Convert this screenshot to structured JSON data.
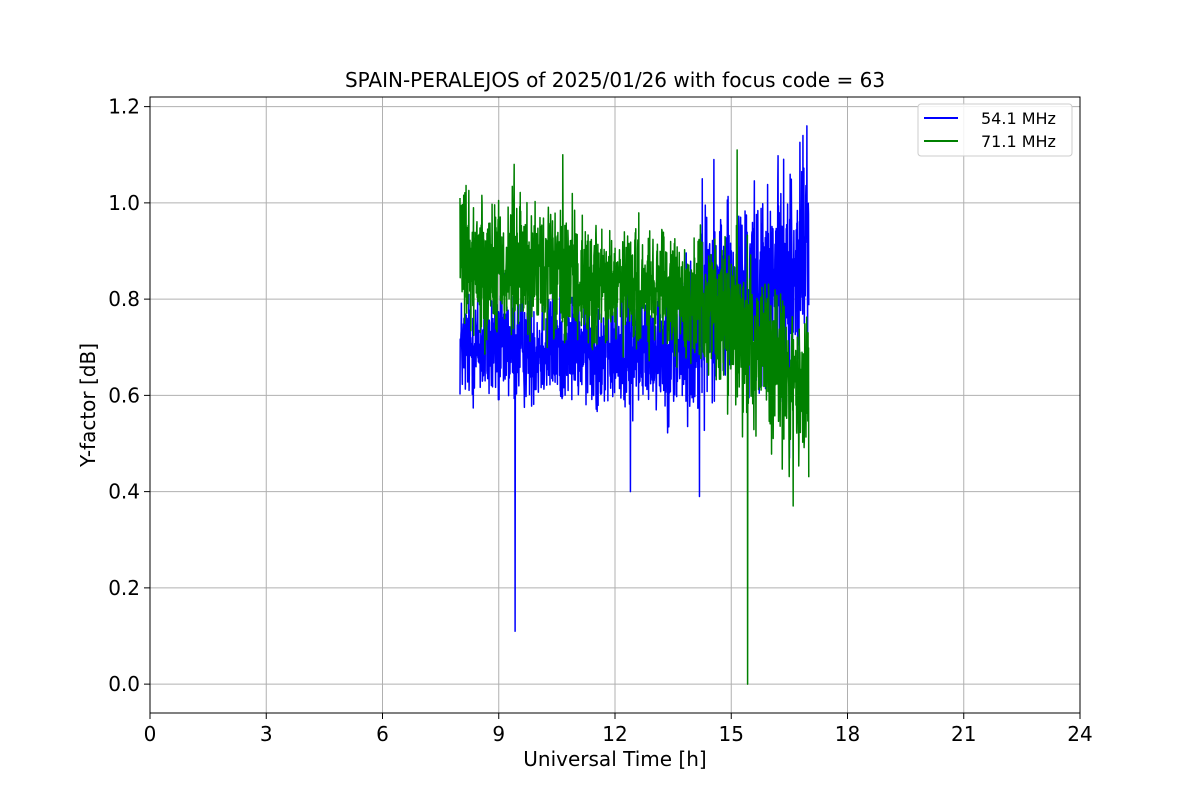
{
  "chart_data": {
    "type": "line",
    "title": "SPAIN-PERALEJOS of 2025/01/26 with focus code = 63",
    "xlabel": "Universal Time [h]",
    "ylabel": "Y-factor [dB]",
    "xlim": [
      0,
      24
    ],
    "ylim": [
      -0.06,
      1.22
    ],
    "xticks": [
      0,
      3,
      6,
      9,
      12,
      15,
      18,
      21,
      24
    ],
    "yticks": [
      0.0,
      0.2,
      0.4,
      0.6,
      0.8,
      1.0,
      1.2
    ],
    "xtick_labels": [
      "0",
      "3",
      "6",
      "9",
      "12",
      "15",
      "18",
      "21",
      "24"
    ],
    "ytick_labels": [
      "0.0",
      "0.2",
      "0.4",
      "0.6",
      "0.8",
      "1.0",
      "1.2"
    ],
    "grid": true,
    "legend_position": "top-right",
    "series": [
      {
        "name": "54.1 MHz",
        "color": "#0000ff",
        "trend": [
          [
            8.0,
            0.7
          ],
          [
            9.0,
            0.7
          ],
          [
            10.0,
            0.7
          ],
          [
            11.0,
            0.7
          ],
          [
            12.0,
            0.69
          ],
          [
            13.0,
            0.7
          ],
          [
            14.0,
            0.71
          ],
          [
            14.5,
            0.82
          ],
          [
            15.0,
            0.79
          ],
          [
            16.0,
            0.82
          ],
          [
            16.5,
            0.85
          ],
          [
            17.0,
            0.9
          ]
        ],
        "amplitude": [
          [
            8.0,
            0.08
          ],
          [
            9.0,
            0.09
          ],
          [
            11.0,
            0.08
          ],
          [
            13.0,
            0.09
          ],
          [
            14.2,
            0.14
          ],
          [
            15.0,
            0.14
          ],
          [
            16.5,
            0.16
          ],
          [
            17.0,
            0.14
          ]
        ],
        "extremes": [
          [
            9.42,
            0.11
          ],
          [
            12.4,
            0.4
          ],
          [
            14.18,
            0.39
          ],
          [
            14.25,
            1.05
          ],
          [
            14.55,
            1.09
          ],
          [
            16.5,
            0.47
          ],
          [
            16.95,
            1.16
          ],
          [
            16.85,
            1.14
          ]
        ]
      },
      {
        "name": "71.1 MHz",
        "color": "#008000",
        "trend": [
          [
            8.0,
            0.88
          ],
          [
            9.0,
            0.87
          ],
          [
            10.0,
            0.86
          ],
          [
            11.0,
            0.84
          ],
          [
            12.0,
            0.82
          ],
          [
            13.0,
            0.81
          ],
          [
            14.0,
            0.8
          ],
          [
            15.0,
            0.76
          ],
          [
            16.0,
            0.68
          ],
          [
            16.5,
            0.62
          ],
          [
            17.0,
            0.62
          ]
        ],
        "amplitude": [
          [
            8.0,
            0.1
          ],
          [
            9.0,
            0.11
          ],
          [
            10.5,
            0.1
          ],
          [
            12.0,
            0.09
          ],
          [
            14.0,
            0.09
          ],
          [
            15.0,
            0.12
          ],
          [
            16.0,
            0.13
          ],
          [
            17.0,
            0.12
          ]
        ],
        "extremes": [
          [
            8.0,
            1.01
          ],
          [
            9.4,
            1.08
          ],
          [
            10.65,
            1.1
          ],
          [
            15.15,
            1.11
          ],
          [
            15.42,
            0.0
          ],
          [
            16.6,
            0.37
          ],
          [
            17.0,
            0.43
          ]
        ]
      }
    ]
  }
}
